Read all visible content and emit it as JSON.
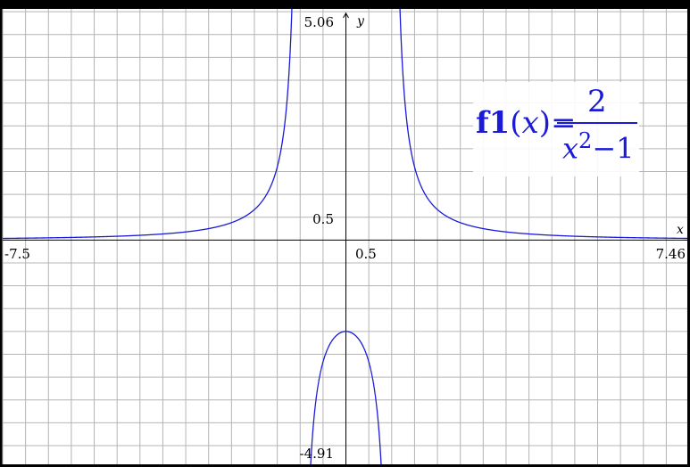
{
  "chart_data": {
    "type": "line",
    "function": "2/(x^2-1)",
    "series": [
      {
        "name": "f1(x)",
        "expression": "2/(x^2-1)",
        "color": "#1a1ad8"
      }
    ],
    "xlim": [
      -7.5,
      7.46
    ],
    "ylim": [
      -4.91,
      5.06
    ],
    "grid": true,
    "grid_step": 0.5,
    "xlabel": "x",
    "ylabel": "y",
    "tick_labels": {
      "xmin": "-7.5",
      "xmax": "7.46",
      "xscale": "0.5",
      "ymin": "-4.91",
      "ymax": "5.06",
      "yscale": "0.5"
    },
    "annotation": {
      "name": "f1",
      "var": "x",
      "numerator": "2",
      "denominator_base": "x",
      "denominator_exp": "2",
      "denominator_rest": "−1"
    }
  },
  "colors": {
    "curve": "#1a1ad8",
    "grid": "#b4b4b4",
    "axes": "#000000",
    "background": "#ffffff"
  }
}
